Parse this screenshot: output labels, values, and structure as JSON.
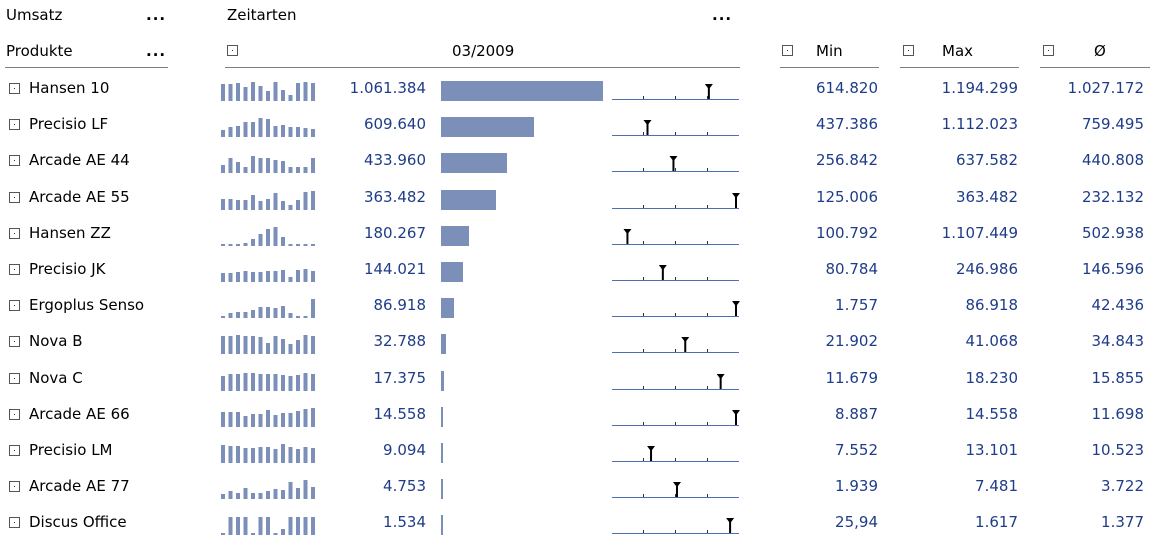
{
  "header": {
    "measure": "Umsatz",
    "time_label": "Zeitarten",
    "products_label": "Produkte",
    "dots": "...",
    "period": "03/2009",
    "min_label": "Min",
    "max_label": "Max",
    "avg_label": "Ø"
  },
  "colors": {
    "bar": "#7b8fb8",
    "value_text": "#1f3c88",
    "line": "#4a6fb5"
  },
  "rows": [
    {
      "name": "Hansen 10",
      "value": "1.061.384",
      "min": "614.820",
      "max": "1.194.299",
      "avg": "1.027.172",
      "spark": [
        0.85,
        0.85,
        0.9,
        0.7,
        0.95,
        0.75,
        0.5,
        0.95,
        0.55,
        0.3,
        0.9,
        0.95,
        0.9
      ],
      "bar_fraction": 1.0,
      "range_pos": 0.77
    },
    {
      "name": "Precisio LF",
      "value": "609.640",
      "min": "437.386",
      "max": "1.112.023",
      "avg": "759.495",
      "spark": [
        0.35,
        0.5,
        0.55,
        0.75,
        0.75,
        0.95,
        0.9,
        0.55,
        0.6,
        0.5,
        0.5,
        0.45,
        0.4
      ],
      "bar_fraction": 0.574,
      "range_pos": 0.25
    },
    {
      "name": "Arcade AE 44",
      "value": "433.960",
      "min": "256.842",
      "max": "637.582",
      "avg": "440.808",
      "spark": [
        0.4,
        0.75,
        0.55,
        0.3,
        0.85,
        0.75,
        0.75,
        0.65,
        0.6,
        0.3,
        0.3,
        0.3,
        0.75
      ],
      "bar_fraction": 0.409,
      "range_pos": 0.47
    },
    {
      "name": "Arcade AE 55",
      "value": "363.482",
      "min": "125.006",
      "max": "363.482",
      "avg": "232.132",
      "spark": [
        0.55,
        0.55,
        0.5,
        0.5,
        0.75,
        0.45,
        0.55,
        0.85,
        0.45,
        0.25,
        0.5,
        0.9,
        0.95
      ],
      "bar_fraction": 0.342,
      "range_pos": 1.0
    },
    {
      "name": "Hansen ZZ",
      "value": "180.267",
      "min": "100.792",
      "max": "1.107.449",
      "avg": "502.938",
      "spark": [
        0.08,
        0.08,
        0.08,
        0.15,
        0.35,
        0.6,
        0.85,
        0.95,
        0.45,
        0.08,
        0.08,
        0.08,
        0.08
      ],
      "bar_fraction": 0.17,
      "range_pos": 0.08
    },
    {
      "name": "Precisio JK",
      "value": "144.021",
      "min": "80.784",
      "max": "246.986",
      "avg": "146.596",
      "spark": [
        0.45,
        0.45,
        0.5,
        0.55,
        0.5,
        0.5,
        0.55,
        0.55,
        0.6,
        0.25,
        0.6,
        0.65,
        0.55
      ],
      "bar_fraction": 0.136,
      "range_pos": 0.38
    },
    {
      "name": "Ergoplus Senso",
      "value": "86.918",
      "min": "1.757",
      "max": "86.918",
      "avg": "42.436",
      "spark": [
        0.1,
        0.25,
        0.3,
        0.3,
        0.4,
        0.55,
        0.55,
        0.5,
        0.6,
        0.25,
        0.1,
        0.1,
        0.95
      ],
      "bar_fraction": 0.082,
      "range_pos": 1.0
    },
    {
      "name": "Nova B",
      "value": "32.788",
      "min": "21.902",
      "max": "41.068",
      "avg": "34.843",
      "spark": [
        0.9,
        0.9,
        0.95,
        0.9,
        0.9,
        0.85,
        0.55,
        0.9,
        0.75,
        0.5,
        0.7,
        0.95,
        0.9
      ],
      "bar_fraction": 0.031,
      "range_pos": 0.57
    },
    {
      "name": "Nova C",
      "value": "17.375",
      "min": "11.679",
      "max": "18.230",
      "avg": "15.855",
      "spark": [
        0.75,
        0.85,
        0.85,
        0.9,
        0.9,
        0.85,
        0.85,
        0.85,
        0.8,
        0.75,
        0.8,
        0.9,
        0.85
      ],
      "bar_fraction": 0.016,
      "range_pos": 0.87
    },
    {
      "name": "Arcade AE 66",
      "value": "14.558",
      "min": "8.887",
      "max": "14.558",
      "avg": "11.698",
      "spark": [
        0.75,
        0.75,
        0.75,
        0.55,
        0.65,
        0.65,
        0.85,
        0.6,
        0.7,
        0.7,
        0.8,
        0.9,
        0.95
      ],
      "bar_fraction": 0.014,
      "range_pos": 1.0
    },
    {
      "name": "Precisio LM",
      "value": "9.094",
      "min": "7.552",
      "max": "13.101",
      "avg": "10.523",
      "spark": [
        0.9,
        0.85,
        0.85,
        0.75,
        0.75,
        0.8,
        0.8,
        0.7,
        0.95,
        0.8,
        0.7,
        0.8,
        0.75
      ],
      "bar_fraction": 0.009,
      "range_pos": 0.28
    },
    {
      "name": "Arcade AE 77",
      "value": "4.753",
      "min": "1.939",
      "max": "7.481",
      "avg": "3.722",
      "spark": [
        0.25,
        0.4,
        0.3,
        0.55,
        0.3,
        0.3,
        0.4,
        0.5,
        0.45,
        0.85,
        0.55,
        0.95,
        0.6
      ],
      "bar_fraction": 0.004,
      "range_pos": 0.5
    },
    {
      "name": "Discus Office",
      "value": "1.534",
      "min": "25,94",
      "max": "1.617",
      "avg": "1.377",
      "spark": [
        0.08,
        0.9,
        0.9,
        0.9,
        0.08,
        0.9,
        0.9,
        0.08,
        0.3,
        0.9,
        0.9,
        0.9,
        0.9
      ],
      "bar_fraction": 0.001,
      "range_pos": 0.95
    }
  ]
}
